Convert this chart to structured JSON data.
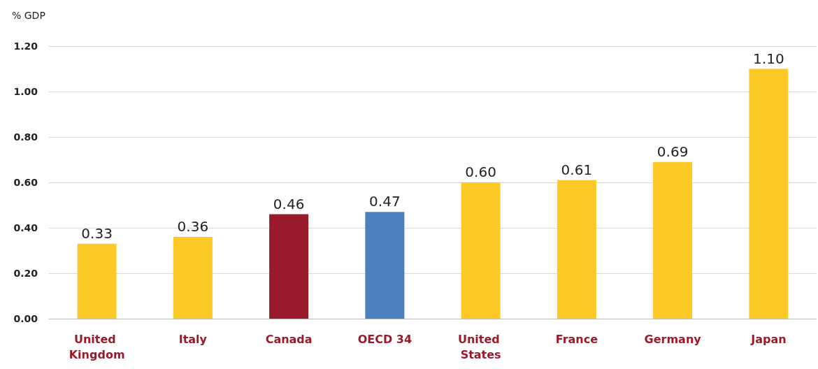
{
  "chart_data": {
    "type": "bar",
    "ylabel": "% GDP",
    "categories": [
      "United Kingdom",
      "Italy",
      "Canada",
      "OECD 34",
      "United States",
      "France",
      "Germany",
      "Japan"
    ],
    "values": [
      0.33,
      0.36,
      0.46,
      0.47,
      0.6,
      0.61,
      0.69,
      1.1
    ],
    "value_labels": [
      "0.33",
      "0.36",
      "0.46",
      "0.47",
      "0.60",
      "0.61",
      "0.69",
      "1.10"
    ],
    "colors": [
      "#fcc926",
      "#fcc926",
      "#991b2b",
      "#4a80bd",
      "#fcc926",
      "#fcc926",
      "#fcc926",
      "#fcc926"
    ],
    "ylim": [
      0,
      1.2
    ],
    "yticks": [
      {
        "value": 0,
        "label": "0.00"
      },
      {
        "value": 0.2,
        "label": "0.20"
      },
      {
        "value": 0.4,
        "label": "0.40"
      },
      {
        "value": 0.6,
        "label": "0.60"
      },
      {
        "value": 0.8,
        "label": "0.80"
      },
      {
        "value": 1,
        "label": "1.00"
      },
      {
        "value": 1.2,
        "label": "1.20"
      }
    ],
    "grid": "y"
  }
}
